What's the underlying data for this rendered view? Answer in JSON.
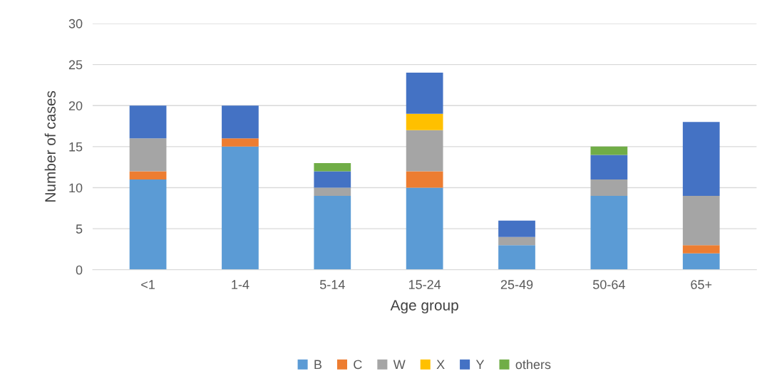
{
  "chart_data": {
    "type": "bar",
    "stacked": true,
    "xlabel": "Age group",
    "ylabel": "Number of cases",
    "categories": [
      "<1",
      "1-4",
      "5-14",
      "15-24",
      "25-49",
      "50-64",
      "65+"
    ],
    "series": [
      {
        "name": "B",
        "color": "#5b9bd5",
        "values": [
          11,
          15,
          9,
          10,
          3,
          9,
          2
        ]
      },
      {
        "name": "C",
        "color": "#ed7d31",
        "values": [
          1,
          1,
          0,
          2,
          0,
          0,
          1
        ]
      },
      {
        "name": "W",
        "color": "#a5a5a5",
        "values": [
          4,
          0,
          1,
          5,
          1,
          2,
          6
        ]
      },
      {
        "name": "X",
        "color": "#ffc000",
        "values": [
          0,
          0,
          0,
          2,
          0,
          0,
          0
        ]
      },
      {
        "name": "Y",
        "color": "#4472c4",
        "values": [
          4,
          4,
          2,
          5,
          2,
          3,
          9
        ]
      },
      {
        "name": "others",
        "color": "#70ad47",
        "values": [
          0,
          0,
          1,
          0,
          0,
          1,
          0
        ]
      }
    ],
    "ylim": [
      0,
      30
    ],
    "yticks": [
      0,
      5,
      10,
      15,
      20,
      25,
      30
    ],
    "grid": "y",
    "legend": "bottom"
  }
}
